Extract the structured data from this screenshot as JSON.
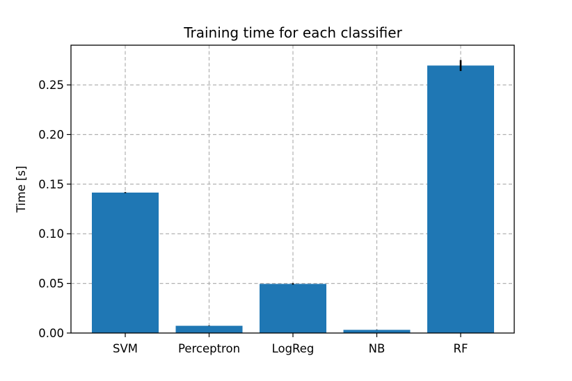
{
  "chart_data": {
    "type": "bar",
    "title": "Training time for each classifier",
    "xlabel": "",
    "ylabel": "Time [s]",
    "categories": [
      "SVM",
      "Perceptron",
      "LogReg",
      "NB",
      "RF"
    ],
    "values": [
      0.1415,
      0.0073,
      0.0495,
      0.0032,
      0.2695
    ],
    "errors": [
      0.0005,
      0.0002,
      0.0007,
      0.0001,
      0.0055
    ],
    "ylim": [
      0,
      0.29
    ],
    "yticks": [
      0.0,
      0.05,
      0.1,
      0.15,
      0.2,
      0.25
    ],
    "ytick_labels": [
      "0.00",
      "0.05",
      "0.10",
      "0.15",
      "0.20",
      "0.25"
    ],
    "grid": true,
    "bar_color": "#1f77b4",
    "error_color": "#000000"
  }
}
